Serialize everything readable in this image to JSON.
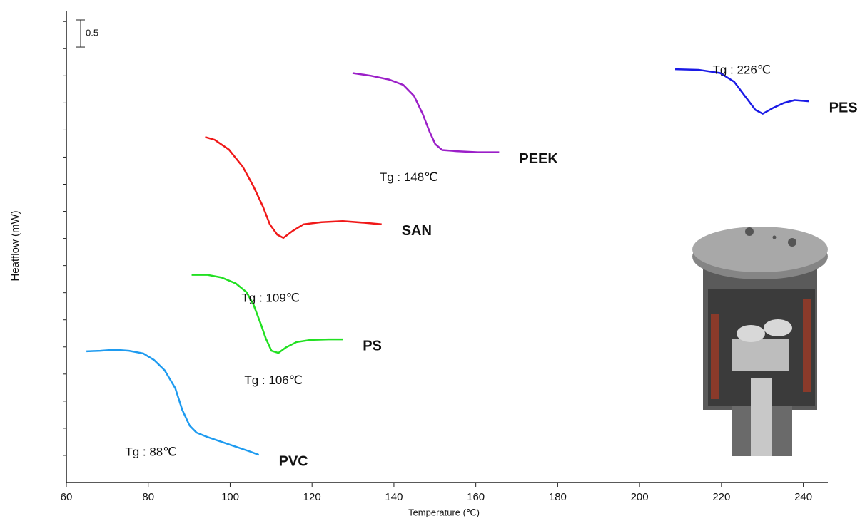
{
  "chart_data": {
    "type": "line",
    "xlabel": "Temperature (℃)",
    "ylabel": "Heatflow (mW)",
    "xlim": [
      60,
      246
    ],
    "xticks": [
      60,
      80,
      100,
      120,
      140,
      160,
      180,
      200,
      220,
      240
    ],
    "ylim": [
      0,
      8.7
    ],
    "yticks": [
      0.5,
      1,
      1.5,
      2,
      2.5,
      3,
      3.5,
      4,
      4.5,
      5,
      5.5,
      6,
      6.5,
      7,
      7.5,
      8,
      8.5
    ],
    "scale_bar": 0.5,
    "series": [
      {
        "name": "PVC",
        "color": "#1e9bf0",
        "annotation": "Tg : 88℃",
        "x": [
          64.9,
          68.3,
          71.8,
          75.3,
          78.8,
          81.4,
          84.0,
          86.6,
          88.3,
          90.1,
          91.8,
          94.4,
          97.9,
          101.4,
          104.9,
          107.0
        ],
        "values": [
          2.42,
          2.43,
          2.45,
          2.43,
          2.38,
          2.26,
          2.07,
          1.74,
          1.34,
          1.05,
          0.92,
          0.84,
          0.75,
          0.66,
          0.57,
          0.51
        ]
      },
      {
        "name": "PS",
        "color": "#22e022",
        "annotation": "Tg : 106℃",
        "x": [
          90.6,
          94.4,
          97.9,
          101.4,
          104.0,
          105.7,
          107.5,
          108.7,
          110.1,
          111.8,
          113.6,
          116.2,
          119.7,
          124.0,
          127.5
        ],
        "values": [
          3.83,
          3.83,
          3.78,
          3.67,
          3.51,
          3.28,
          2.92,
          2.66,
          2.43,
          2.39,
          2.49,
          2.59,
          2.63,
          2.64,
          2.64
        ]
      },
      {
        "name": "SAN",
        "color": "#f01818",
        "annotation": "Tg : 109℃",
        "x": [
          93.9,
          96.2,
          99.7,
          103.1,
          105.7,
          108.0,
          109.7,
          111.5,
          113.0,
          115.3,
          117.9,
          122.3,
          127.5,
          132.7,
          137.0
        ],
        "values": [
          6.37,
          6.32,
          6.14,
          5.82,
          5.46,
          5.09,
          4.76,
          4.57,
          4.51,
          4.64,
          4.76,
          4.8,
          4.82,
          4.79,
          4.76
        ]
      },
      {
        "name": "PEEK",
        "color": "#9b1fc8",
        "annotation": "Tg : 148℃",
        "x": [
          129.9,
          134.4,
          138.8,
          142.3,
          144.9,
          147.0,
          148.7,
          150.1,
          151.8,
          155.3,
          160.5,
          165.7
        ],
        "values": [
          7.55,
          7.5,
          7.43,
          7.33,
          7.13,
          6.8,
          6.47,
          6.24,
          6.13,
          6.11,
          6.09,
          6.09
        ]
      },
      {
        "name": "PES",
        "color": "#1a1ae6",
        "annotation": "Tg : 226℃",
        "x": [
          208.7,
          214.4,
          219.7,
          223.1,
          225.7,
          228.3,
          230.1,
          232.7,
          235.3,
          237.9,
          241.4
        ],
        "values": [
          7.62,
          7.61,
          7.55,
          7.39,
          7.13,
          6.87,
          6.8,
          6.91,
          7.0,
          7.05,
          7.03
        ]
      }
    ]
  }
}
